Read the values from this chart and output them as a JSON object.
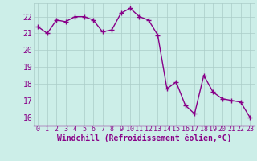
{
  "x": [
    0,
    1,
    2,
    3,
    4,
    5,
    6,
    7,
    8,
    9,
    10,
    11,
    12,
    13,
    14,
    15,
    16,
    17,
    18,
    19,
    20,
    21,
    22,
    23
  ],
  "y": [
    21.4,
    21.0,
    21.8,
    21.7,
    22.0,
    22.0,
    21.8,
    21.1,
    21.2,
    22.2,
    22.5,
    22.0,
    21.8,
    20.9,
    17.7,
    18.1,
    16.7,
    16.2,
    18.5,
    17.5,
    17.1,
    17.0,
    16.9,
    16.0
  ],
  "line_color": "#880088",
  "marker": "+",
  "markersize": 4,
  "linewidth": 1.0,
  "bg_color": "#cceee8",
  "grid_color": "#aaccc8",
  "tick_label_color": "#880088",
  "xlabel": "Windchill (Refroidissement éolien,°C)",
  "xlabel_color": "#880088",
  "ylim": [
    15.5,
    22.8
  ],
  "yticks": [
    16,
    17,
    18,
    19,
    20,
    21,
    22
  ],
  "xlim": [
    -0.5,
    23.5
  ],
  "xticks": [
    0,
    1,
    2,
    3,
    4,
    5,
    6,
    7,
    8,
    9,
    10,
    11,
    12,
    13,
    14,
    15,
    16,
    17,
    18,
    19,
    20,
    21,
    22,
    23
  ]
}
